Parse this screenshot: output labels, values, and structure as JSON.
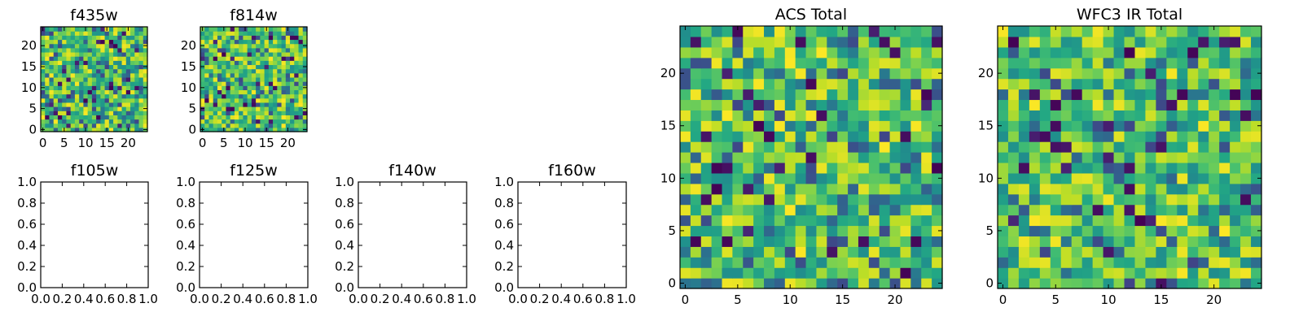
{
  "chart_data": [
    {
      "type": "heatmap",
      "title": "f435w",
      "xlim": [
        -0.5,
        24.5
      ],
      "ylim": [
        -0.5,
        24.5
      ],
      "xticks": [
        0,
        5,
        10,
        15,
        20
      ],
      "yticks": [
        0,
        5,
        10,
        15,
        20
      ],
      "xticklabels": [
        "0",
        "5",
        "10",
        "15",
        "20"
      ],
      "yticklabels": [
        "0",
        "5",
        "10",
        "15",
        "20"
      ],
      "colormap": "viridis",
      "grid": false,
      "z_grid_size": [
        25,
        25
      ],
      "seed": 11,
      "origin": "lower"
    },
    {
      "type": "heatmap",
      "title": "f814w",
      "xlim": [
        -0.5,
        24.5
      ],
      "ylim": [
        -0.5,
        24.5
      ],
      "xticks": [
        0,
        5,
        10,
        15,
        20
      ],
      "yticks": [
        0,
        5,
        10,
        15,
        20
      ],
      "xticklabels": [
        "0",
        "5",
        "10",
        "15",
        "20"
      ],
      "yticklabels": [
        "0",
        "5",
        "10",
        "15",
        "20"
      ],
      "colormap": "viridis",
      "grid": false,
      "z_grid_size": [
        25,
        25
      ],
      "seed": 29,
      "origin": "lower"
    },
    {
      "type": "heatmap",
      "title": "f105w",
      "xlim": [
        0.0,
        1.0
      ],
      "ylim": [
        0.0,
        1.0
      ],
      "xticks": [
        0.0,
        0.2,
        0.4,
        0.6,
        0.8,
        1.0
      ],
      "yticks": [
        0.0,
        0.2,
        0.4,
        0.6,
        0.8,
        1.0
      ],
      "xticklabels": [
        "0.0",
        "0.2",
        "0.4",
        "0.6",
        "0.8",
        "1.0"
      ],
      "yticklabels": [
        "0.0",
        "0.2",
        "0.4",
        "0.6",
        "0.8",
        "1.0"
      ],
      "colormap": "none",
      "grid": false
    },
    {
      "type": "heatmap",
      "title": "f125w",
      "xlim": [
        0.0,
        1.0
      ],
      "ylim": [
        0.0,
        1.0
      ],
      "xticks": [
        0.0,
        0.2,
        0.4,
        0.6,
        0.8,
        1.0
      ],
      "yticks": [
        0.0,
        0.2,
        0.4,
        0.6,
        0.8,
        1.0
      ],
      "xticklabels": [
        "0.0",
        "0.2",
        "0.4",
        "0.6",
        "0.8",
        "1.0"
      ],
      "yticklabels": [
        "0.0",
        "0.2",
        "0.4",
        "0.6",
        "0.8",
        "1.0"
      ],
      "colormap": "none",
      "grid": false
    },
    {
      "type": "heatmap",
      "title": "f140w",
      "xlim": [
        0.0,
        1.0
      ],
      "ylim": [
        0.0,
        1.0
      ],
      "xticks": [
        0.0,
        0.2,
        0.4,
        0.6,
        0.8,
        1.0
      ],
      "yticks": [
        0.0,
        0.2,
        0.4,
        0.6,
        0.8,
        1.0
      ],
      "xticklabels": [
        "0.0",
        "0.2",
        "0.4",
        "0.6",
        "0.8",
        "1.0"
      ],
      "yticklabels": [
        "0.0",
        "0.2",
        "0.4",
        "0.6",
        "0.8",
        "1.0"
      ],
      "colormap": "none",
      "grid": false
    },
    {
      "type": "heatmap",
      "title": "f160w",
      "xlim": [
        0.0,
        1.0
      ],
      "ylim": [
        0.0,
        1.0
      ],
      "xticks": [
        0.0,
        0.2,
        0.4,
        0.6,
        0.8,
        1.0
      ],
      "yticks": [
        0.0,
        0.2,
        0.4,
        0.6,
        0.8,
        1.0
      ],
      "xticklabels": [
        "0.0",
        "0.2",
        "0.4",
        "0.6",
        "0.8",
        "1.0"
      ],
      "yticklabels": [
        "0.0",
        "0.2",
        "0.4",
        "0.6",
        "0.8",
        "1.0"
      ],
      "colormap": "none",
      "grid": false
    },
    {
      "type": "heatmap",
      "title": "ACS Total",
      "xlim": [
        -0.5,
        24.5
      ],
      "ylim": [
        -0.5,
        24.5
      ],
      "xticks": [
        0,
        5,
        10,
        15,
        20
      ],
      "yticks": [
        0,
        5,
        10,
        15,
        20
      ],
      "xticklabels": [
        "0",
        "5",
        "10",
        "15",
        "20"
      ],
      "yticklabels": [
        "0",
        "5",
        "10",
        "15",
        "20"
      ],
      "colormap": "viridis",
      "grid": false,
      "z_grid_size": [
        25,
        25
      ],
      "seed": 53,
      "origin": "lower"
    },
    {
      "type": "heatmap",
      "title": "WFC3 IR Total",
      "xlim": [
        -0.5,
        24.5
      ],
      "ylim": [
        -0.5,
        24.5
      ],
      "xticks": [
        0,
        5,
        10,
        15,
        20
      ],
      "yticks": [
        0,
        5,
        10,
        15,
        20
      ],
      "xticklabels": [
        "0",
        "5",
        "10",
        "15",
        "20"
      ],
      "yticklabels": [
        "0",
        "5",
        "10",
        "15",
        "20"
      ],
      "colormap": "viridis",
      "grid": false,
      "z_grid_size": [
        25,
        25
      ],
      "seed": 71,
      "origin": "lower"
    }
  ]
}
